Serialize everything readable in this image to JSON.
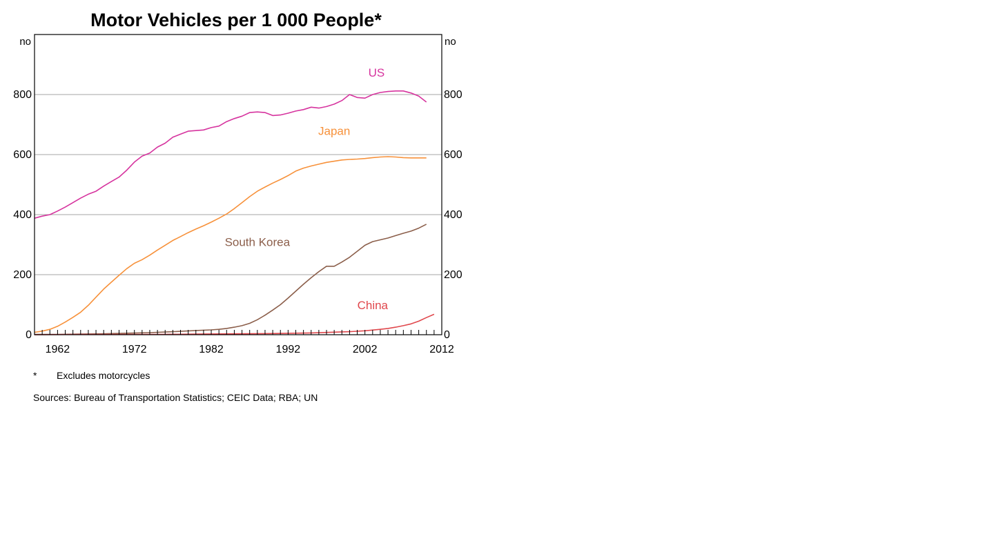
{
  "chart_data": {
    "type": "line",
    "title": "Motor Vehicles per 1 000 People*",
    "ylabel_left": "no",
    "ylabel_right": "no",
    "xlim": [
      1959,
      2012
    ],
    "ylim": [
      0,
      1000
    ],
    "yticks": [
      0,
      200,
      400,
      600,
      800
    ],
    "xticks": [
      1962,
      1972,
      1982,
      1992,
      2002,
      2012
    ],
    "grid": true,
    "footnote_marker": "*",
    "footnote": "Excludes motorcycles",
    "sources": "Sources: Bureau of Transportation Statistics; CEIC Data; RBA; UN",
    "series": [
      {
        "name": "US",
        "color": "#d6339e",
        "label_year": 2003.5,
        "label_value": 860,
        "x": [
          1959,
          1960,
          1961,
          1962,
          1963,
          1964,
          1965,
          1966,
          1967,
          1968,
          1969,
          1970,
          1971,
          1972,
          1973,
          1974,
          1975,
          1976,
          1977,
          1978,
          1979,
          1980,
          1981,
          1982,
          1983,
          1984,
          1985,
          1986,
          1987,
          1988,
          1989,
          1990,
          1991,
          1992,
          1993,
          1994,
          1995,
          1996,
          1997,
          1998,
          1999,
          2000,
          2001,
          2002,
          2003,
          2004,
          2005,
          2006,
          2007,
          2008,
          2009,
          2010
        ],
        "values": [
          388,
          395,
          400,
          412,
          425,
          440,
          455,
          468,
          478,
          495,
          510,
          525,
          548,
          575,
          595,
          605,
          625,
          638,
          658,
          668,
          678,
          680,
          682,
          690,
          695,
          710,
          720,
          728,
          740,
          742,
          740,
          730,
          732,
          738,
          745,
          750,
          758,
          755,
          760,
          768,
          780,
          800,
          790,
          788,
          800,
          807,
          810,
          812,
          812,
          805,
          795,
          775
        ]
      },
      {
        "name": "Japan",
        "color": "#f7913a",
        "label_year": 1998,
        "label_value": 665,
        "x": [
          1959,
          1960,
          1961,
          1962,
          1963,
          1964,
          1965,
          1966,
          1967,
          1968,
          1969,
          1970,
          1971,
          1972,
          1973,
          1974,
          1975,
          1976,
          1977,
          1978,
          1979,
          1980,
          1981,
          1982,
          1983,
          1984,
          1985,
          1986,
          1987,
          1988,
          1989,
          1990,
          1991,
          1992,
          1993,
          1994,
          1995,
          1996,
          1997,
          1998,
          1999,
          2000,
          2001,
          2002,
          2003,
          2004,
          2005,
          2006,
          2007,
          2008,
          2009,
          2010
        ],
        "values": [
          8,
          12,
          18,
          28,
          42,
          58,
          75,
          98,
          125,
          152,
          175,
          198,
          220,
          238,
          250,
          265,
          282,
          298,
          314,
          327,
          340,
          352,
          363,
          375,
          388,
          402,
          420,
          440,
          460,
          478,
          492,
          505,
          517,
          530,
          545,
          555,
          562,
          568,
          574,
          578,
          582,
          584,
          585,
          587,
          590,
          592,
          593,
          592,
          590,
          589,
          589,
          589
        ]
      },
      {
        "name": "South Korea",
        "color": "#8b5e4a",
        "label_year": 1988,
        "label_value": 295,
        "x": [
          1959,
          1962,
          1965,
          1968,
          1971,
          1974,
          1977,
          1980,
          1982,
          1983,
          1984,
          1985,
          1986,
          1987,
          1988,
          1989,
          1990,
          1991,
          1992,
          1993,
          1994,
          1995,
          1996,
          1997,
          1998,
          1999,
          2000,
          2001,
          2002,
          2003,
          2004,
          2005,
          2006,
          2007,
          2008,
          2009,
          2010
        ],
        "values": [
          1,
          1,
          2,
          3,
          5,
          7,
          10,
          14,
          16,
          18,
          21,
          25,
          30,
          38,
          50,
          65,
          82,
          100,
          122,
          145,
          168,
          190,
          210,
          228,
          228,
          242,
          258,
          278,
          298,
          310,
          316,
          322,
          330,
          338,
          345,
          355,
          368
        ]
      },
      {
        "name": "China",
        "color": "#e0474c",
        "label_year": 2003,
        "label_value": 85,
        "x": [
          1959,
          1965,
          1970,
          1975,
          1980,
          1985,
          1990,
          1995,
          2000,
          2002,
          2004,
          2005,
          2006,
          2007,
          2008,
          2009,
          2010,
          2011
        ],
        "values": [
          0,
          1,
          1,
          1,
          2,
          3,
          4,
          6,
          10,
          13,
          18,
          21,
          25,
          30,
          36,
          45,
          57,
          68
        ]
      }
    ]
  }
}
